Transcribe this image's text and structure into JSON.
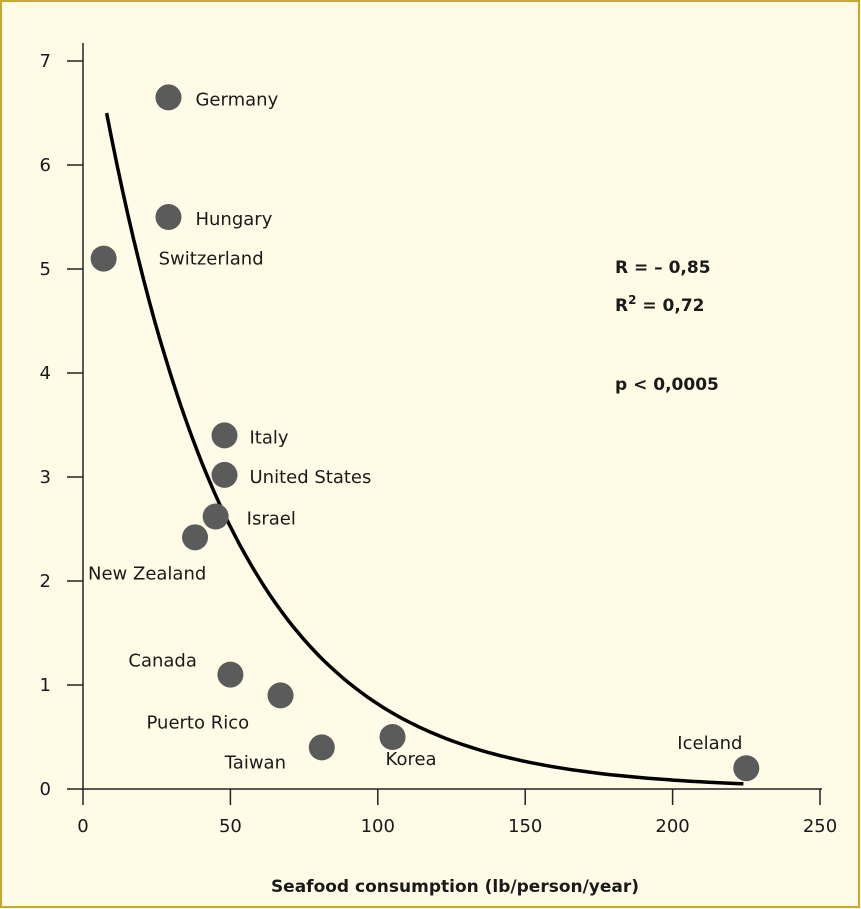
{
  "chart_data": {
    "type": "scatter",
    "title": "",
    "xlabel": "Seafood consumption (lb/person/year)",
    "ylabel": "",
    "xlim": [
      0,
      250
    ],
    "ylim": [
      0,
      7
    ],
    "x_ticks": [
      0,
      50,
      100,
      150,
      200,
      250
    ],
    "y_ticks": [
      0,
      1,
      2,
      3,
      4,
      5,
      6,
      7
    ],
    "grid": false,
    "points": [
      {
        "label": "Germany",
        "x": 29,
        "y": 6.65
      },
      {
        "label": "Hungary",
        "x": 29,
        "y": 5.5
      },
      {
        "label": "Switzerland",
        "x": 7,
        "y": 5.1
      },
      {
        "label": "Italy",
        "x": 48,
        "y": 3.4
      },
      {
        "label": "United States",
        "x": 48,
        "y": 3.02
      },
      {
        "label": "Israel",
        "x": 45,
        "y": 2.62
      },
      {
        "label": "New Zealand",
        "x": 38,
        "y": 2.42
      },
      {
        "label": "Canada",
        "x": 50,
        "y": 1.1
      },
      {
        "label": "Puerto Rico",
        "x": 67,
        "y": 0.9
      },
      {
        "label": "Taiwan",
        "x": 81,
        "y": 0.4
      },
      {
        "label": "Korea",
        "x": 105,
        "y": 0.5
      },
      {
        "label": "Iceland",
        "x": 225,
        "y": 0.2
      }
    ],
    "trend_curve": {
      "type": "exponential",
      "x_start": 8,
      "x_end": 224,
      "y_start": 6.5,
      "y_end": 0.05
    },
    "annotations": {
      "r": "R = – 0,85",
      "r2_prefix": "R",
      "r2_exp": "2",
      "r2_suffix": " = 0,72",
      "p": "p < 0,0005"
    },
    "colors": {
      "background": "#fffbe6",
      "point": "#5b5b5b",
      "curve": "#000000",
      "axis": "#222222"
    }
  }
}
